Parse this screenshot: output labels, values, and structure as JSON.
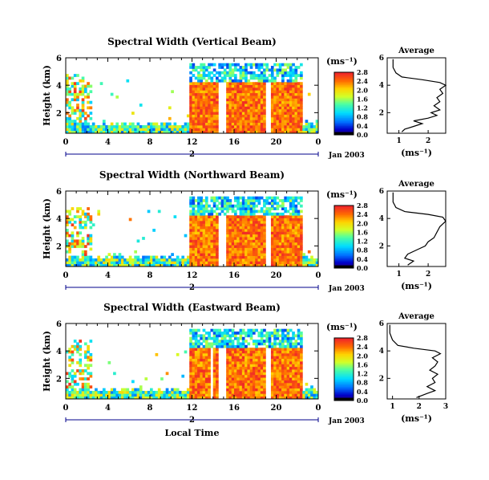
{
  "chart_data": [
    {
      "type": "heatmap",
      "title": "Spectral Width (Vertical Beam)",
      "ylabel": "Height (km)",
      "xlabel": "",
      "xticks": [
        "0",
        "4",
        "8",
        "12",
        "16",
        "20",
        "0"
      ],
      "yticks": [
        "6",
        "4",
        "2"
      ],
      "xlim": [
        0,
        24
      ],
      "ylim": [
        0.5,
        6
      ],
      "day_label": "2",
      "date_label": "Jan 2003",
      "colorbar": {
        "title": "(ms⁻¹)",
        "ticks": [
          "2.8",
          "2.4",
          "2.0",
          "1.6",
          "1.2",
          "0.8",
          "0.4",
          "0.0"
        ],
        "range": [
          0,
          2.8
        ]
      },
      "average": {
        "title": "Average",
        "xlabel": "(ms⁻¹)",
        "xticks": [
          "1",
          "2"
        ],
        "yticks": [
          "6",
          "4",
          "2"
        ],
        "xlim": [
          0.6,
          2.6
        ],
        "ylim": [
          0.5,
          6
        ],
        "profile": [
          [
            1.1,
            0.6
          ],
          [
            1.2,
            0.8
          ],
          [
            1.5,
            1.0
          ],
          [
            1.8,
            1.2
          ],
          [
            1.5,
            1.4
          ],
          [
            2.0,
            1.6
          ],
          [
            2.3,
            1.8
          ],
          [
            2.1,
            2.0
          ],
          [
            2.4,
            2.2
          ],
          [
            2.2,
            2.5
          ],
          [
            2.4,
            2.8
          ],
          [
            2.3,
            3.1
          ],
          [
            2.5,
            3.4
          ],
          [
            2.4,
            3.7
          ],
          [
            2.6,
            4.0
          ],
          [
            2.4,
            4.2
          ],
          [
            1.8,
            4.4
          ],
          [
            1.1,
            4.6
          ],
          [
            0.9,
            4.9
          ],
          [
            0.8,
            5.3
          ],
          [
            0.8,
            5.9
          ]
        ]
      }
    },
    {
      "type": "heatmap",
      "title": "Spectral Width (Northward Beam)",
      "ylabel": "Height (km)",
      "xlabel": "",
      "xticks": [
        "0",
        "4",
        "8",
        "12",
        "16",
        "20",
        "0"
      ],
      "yticks": [
        "6",
        "4",
        "2"
      ],
      "xlim": [
        0,
        24
      ],
      "ylim": [
        0.5,
        6
      ],
      "day_label": "2",
      "date_label": "Jan 2003",
      "colorbar": {
        "title": "(ms⁻¹)",
        "ticks": [
          "2.8",
          "2.4",
          "2.0",
          "1.6",
          "1.2",
          "0.8",
          "0.4",
          "0.0"
        ],
        "range": [
          0,
          2.8
        ]
      },
      "average": {
        "title": "Average",
        "xlabel": "(ms⁻¹)",
        "xticks": [
          "1",
          "2"
        ],
        "yticks": [
          "6",
          "4",
          "2"
        ],
        "xlim": [
          0.6,
          2.6
        ],
        "ylim": [
          0.5,
          6
        ],
        "profile": [
          [
            1.3,
            0.6
          ],
          [
            1.5,
            0.9
          ],
          [
            1.2,
            1.1
          ],
          [
            1.3,
            1.4
          ],
          [
            1.6,
            1.7
          ],
          [
            1.9,
            2.0
          ],
          [
            2.0,
            2.3
          ],
          [
            2.2,
            2.6
          ],
          [
            2.3,
            3.0
          ],
          [
            2.4,
            3.4
          ],
          [
            2.6,
            3.8
          ],
          [
            2.5,
            4.1
          ],
          [
            2.0,
            4.3
          ],
          [
            1.2,
            4.5
          ],
          [
            0.9,
            4.8
          ],
          [
            0.8,
            5.2
          ],
          [
            0.8,
            5.9
          ]
        ]
      }
    },
    {
      "type": "heatmap",
      "title": "Spectral Width (Eastward Beam)",
      "ylabel": "Height (km)",
      "xlabel": "Local Time",
      "xticks": [
        "0",
        "4",
        "8",
        "12",
        "16",
        "20",
        "0"
      ],
      "yticks": [
        "6",
        "4",
        "2"
      ],
      "xlim": [
        0,
        24
      ],
      "ylim": [
        0.5,
        6
      ],
      "day_label": "2",
      "date_label": "Jan 2003",
      "colorbar": {
        "title": "(ms⁻¹)",
        "ticks": [
          "2.8",
          "2.4",
          "2.0",
          "1.6",
          "1.2",
          "0.8",
          "0.4",
          "0.0"
        ],
        "range": [
          0,
          2.8
        ]
      },
      "average": {
        "title": "Average",
        "xlabel": "(ms⁻¹)",
        "xticks": [
          "1",
          "2",
          "3"
        ],
        "yticks": [
          "6",
          "4",
          "2"
        ],
        "xlim": [
          0.8,
          3.0
        ],
        "ylim": [
          0.5,
          6
        ],
        "profile": [
          [
            1.9,
            0.6
          ],
          [
            2.3,
            0.9
          ],
          [
            2.6,
            1.1
          ],
          [
            2.3,
            1.4
          ],
          [
            2.6,
            1.7
          ],
          [
            2.5,
            2.0
          ],
          [
            2.7,
            2.3
          ],
          [
            2.4,
            2.6
          ],
          [
            2.6,
            2.9
          ],
          [
            2.7,
            3.2
          ],
          [
            2.5,
            3.5
          ],
          [
            2.8,
            3.8
          ],
          [
            2.6,
            4.0
          ],
          [
            1.8,
            4.2
          ],
          [
            1.2,
            4.4
          ],
          [
            1.0,
            4.8
          ],
          [
            0.9,
            5.3
          ],
          [
            0.9,
            5.9
          ]
        ]
      }
    }
  ]
}
